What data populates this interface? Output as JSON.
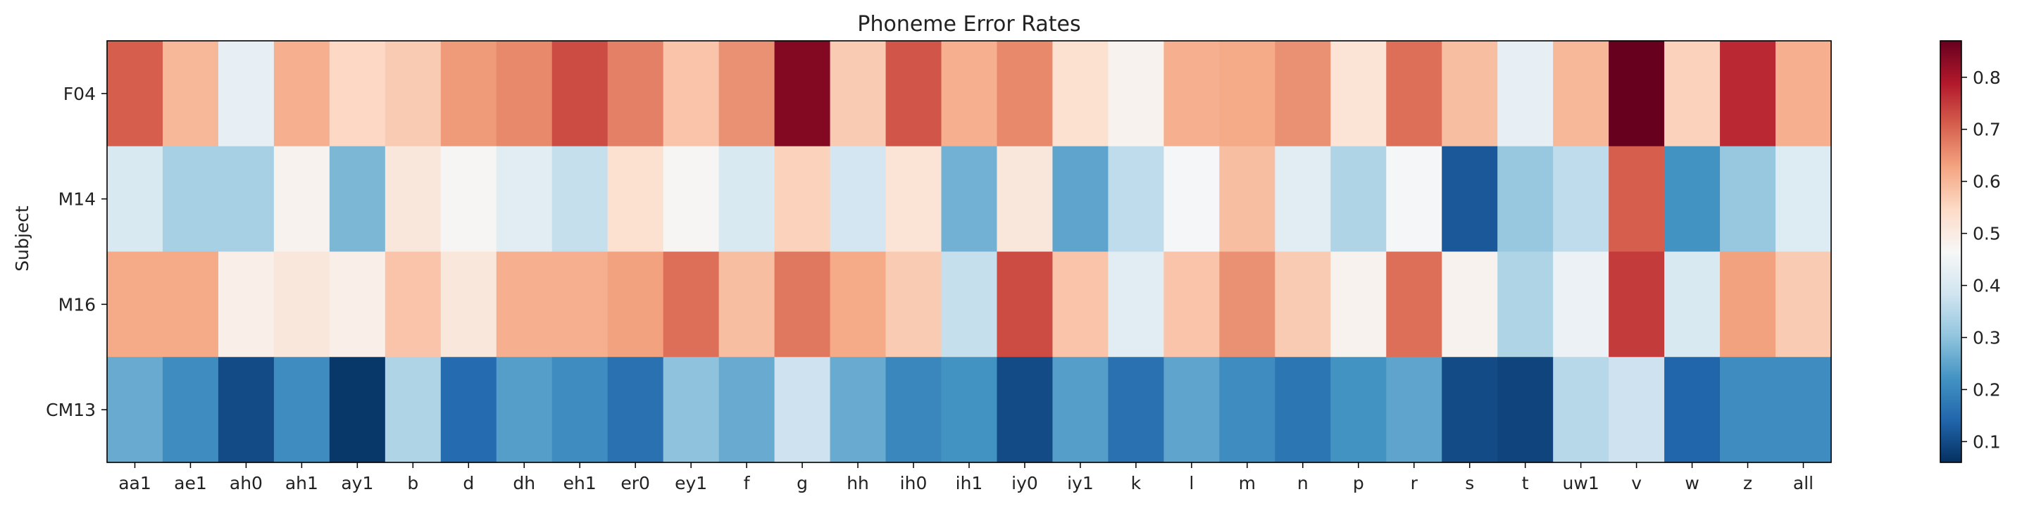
{
  "chart_data": {
    "type": "heatmap",
    "title": "Phoneme Error Rates",
    "ylabel": "Subject",
    "xlabel": "",
    "x_categories": [
      "aa1",
      "ae1",
      "ah0",
      "ah1",
      "ay1",
      "b",
      "d",
      "dh",
      "eh1",
      "er0",
      "ey1",
      "f",
      "g",
      "hh",
      "ih0",
      "ih1",
      "iy0",
      "iy1",
      "k",
      "l",
      "m",
      "n",
      "p",
      "r",
      "s",
      "t",
      "uw1",
      "v",
      "w",
      "z",
      "all"
    ],
    "y_categories": [
      "F04",
      "M14",
      "M16",
      "CM13"
    ],
    "values": [
      [
        0.71,
        0.6,
        0.43,
        0.61,
        0.55,
        0.57,
        0.64,
        0.66,
        0.73,
        0.67,
        0.58,
        0.65,
        0.84,
        0.57,
        0.72,
        0.61,
        0.66,
        0.53,
        0.48,
        0.61,
        0.62,
        0.65,
        0.52,
        0.69,
        0.59,
        0.43,
        0.6,
        0.87,
        0.56,
        0.77,
        0.61
      ],
      [
        0.4,
        0.33,
        0.33,
        0.48,
        0.28,
        0.51,
        0.47,
        0.42,
        0.37,
        0.53,
        0.47,
        0.4,
        0.56,
        0.39,
        0.52,
        0.27,
        0.51,
        0.25,
        0.36,
        0.46,
        0.59,
        0.42,
        0.34,
        0.46,
        0.12,
        0.31,
        0.36,
        0.71,
        0.22,
        0.31,
        0.41
      ],
      [
        0.62,
        0.62,
        0.49,
        0.51,
        0.49,
        0.58,
        0.51,
        0.61,
        0.61,
        0.63,
        0.69,
        0.59,
        0.68,
        0.62,
        0.57,
        0.37,
        0.73,
        0.58,
        0.42,
        0.58,
        0.65,
        0.57,
        0.48,
        0.69,
        0.48,
        0.34,
        0.44,
        0.75,
        0.4,
        0.63,
        0.57
      ],
      [
        0.26,
        0.21,
        0.1,
        0.21,
        0.07,
        0.34,
        0.15,
        0.24,
        0.21,
        0.16,
        0.3,
        0.26,
        0.38,
        0.26,
        0.2,
        0.22,
        0.1,
        0.24,
        0.16,
        0.25,
        0.21,
        0.17,
        0.22,
        0.25,
        0.1,
        0.09,
        0.35,
        0.38,
        0.14,
        0.21,
        0.21
      ]
    ],
    "colormap": "RdBu_r",
    "color_range": [
      0.06,
      0.87
    ],
    "colorbar_ticks": [
      0.1,
      0.2,
      0.3,
      0.4,
      0.5,
      0.6,
      0.7,
      0.8
    ],
    "colorbar_tick_labels": [
      "0.1",
      "0.2",
      "0.3",
      "0.4",
      "0.5",
      "0.6",
      "0.7",
      "0.8"
    ],
    "grid": false
  }
}
